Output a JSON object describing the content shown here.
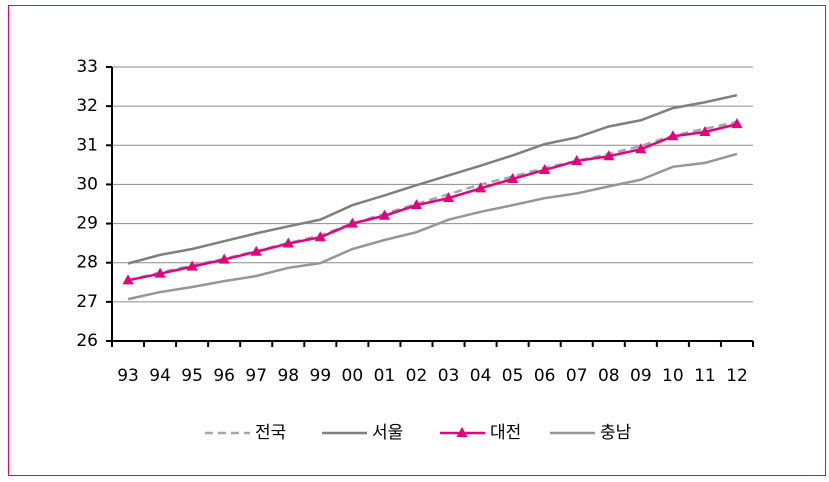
{
  "chart_data": {
    "type": "line",
    "categories": [
      "93",
      "94",
      "95",
      "96",
      "97",
      "98",
      "99",
      "00",
      "01",
      "02",
      "03",
      "04",
      "05",
      "06",
      "07",
      "08",
      "09",
      "10",
      "11",
      "12"
    ],
    "series": [
      {
        "name": "전국",
        "color": "#a6a6a6",
        "dashed": true,
        "values": [
          27.55,
          27.75,
          27.93,
          28.1,
          28.3,
          28.5,
          28.7,
          29.0,
          29.25,
          29.5,
          29.75,
          30.0,
          30.2,
          30.42,
          30.6,
          30.78,
          30.98,
          31.25,
          31.42,
          31.6
        ]
      },
      {
        "name": "서울",
        "color": "#7f7f7f",
        "values": [
          27.98,
          28.2,
          28.35,
          28.55,
          28.75,
          28.93,
          29.1,
          29.47,
          29.72,
          29.98,
          30.23,
          30.48,
          30.74,
          31.03,
          31.2,
          31.48,
          31.64,
          31.95,
          32.1,
          32.28
        ]
      },
      {
        "name": "대전",
        "color": "#e6007e",
        "marker": "triangle",
        "values": [
          27.55,
          27.72,
          27.9,
          28.08,
          28.28,
          28.49,
          28.65,
          29.0,
          29.2,
          29.47,
          29.65,
          29.9,
          30.14,
          30.37,
          30.6,
          30.72,
          30.9,
          31.23,
          31.34,
          31.54
        ]
      },
      {
        "name": "충남",
        "color": "#969696",
        "values": [
          27.07,
          27.25,
          27.38,
          27.53,
          27.66,
          27.87,
          27.99,
          28.35,
          28.58,
          28.78,
          29.1,
          29.3,
          29.47,
          29.65,
          29.77,
          29.95,
          30.12,
          30.45,
          30.55,
          30.78
        ]
      }
    ],
    "ylim": [
      26,
      33
    ],
    "yticks": [
      26,
      27,
      28,
      29,
      30,
      31,
      32,
      33
    ],
    "grid": true
  }
}
